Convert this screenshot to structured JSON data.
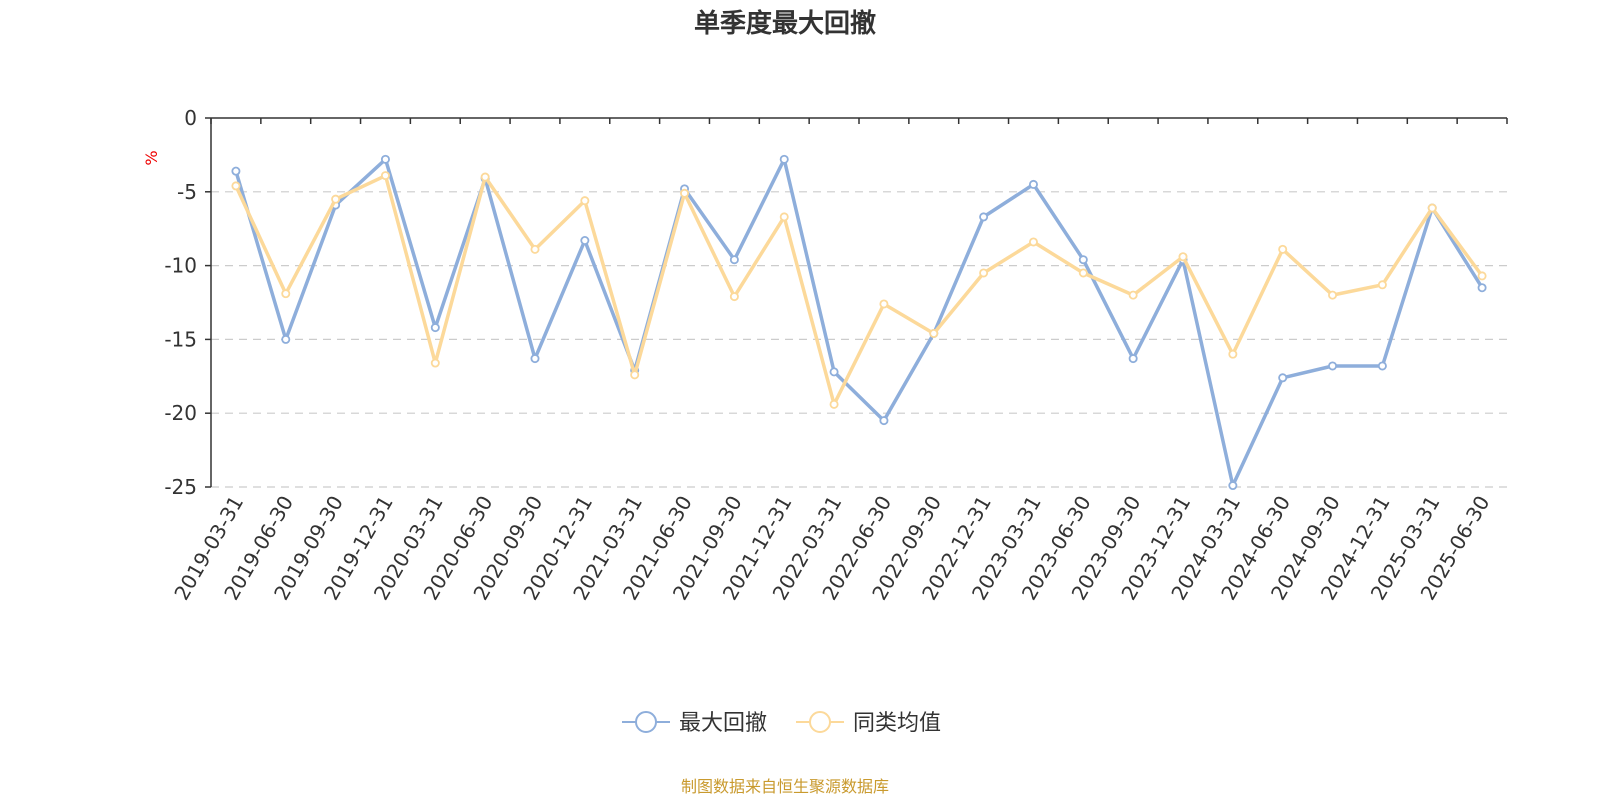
{
  "chart_data": {
    "type": "line",
    "title": "单季度最大回撤",
    "ylabel": "%",
    "xlabel": "",
    "ylim": [
      -25,
      0
    ],
    "yticks": [
      0,
      -5,
      -10,
      -15,
      -20,
      -25
    ],
    "grid": true,
    "legend_position": "bottom",
    "categories": [
      "2019-03-31",
      "2019-06-30",
      "2019-09-30",
      "2019-12-31",
      "2020-03-31",
      "2020-06-30",
      "2020-09-30",
      "2020-12-31",
      "2021-03-31",
      "2021-06-30",
      "2021-09-30",
      "2021-12-31",
      "2022-03-31",
      "2022-06-30",
      "2022-09-30",
      "2022-12-31",
      "2023-03-31",
      "2023-06-30",
      "2023-09-30",
      "2023-12-31",
      "2024-03-31",
      "2024-06-30",
      "2024-09-30",
      "2024-12-31",
      "2025-03-31",
      "2025-06-30"
    ],
    "series": [
      {
        "name": "最大回撤",
        "color": "#8eaedb",
        "values": [
          -3.6,
          -15.0,
          -5.9,
          -2.8,
          -14.2,
          -4.1,
          -16.3,
          -8.3,
          -17.1,
          -4.8,
          -9.6,
          -2.8,
          -17.2,
          -20.5,
          -14.6,
          -6.7,
          -4.5,
          -9.6,
          -16.3,
          -9.6,
          -24.9,
          -17.6,
          -16.8,
          -16.8,
          -6.1,
          -11.5
        ]
      },
      {
        "name": "同类均值",
        "color": "#fcd99a",
        "values": [
          -4.6,
          -11.9,
          -5.5,
          -3.9,
          -16.6,
          -4.0,
          -8.9,
          -5.6,
          -17.4,
          -5.1,
          -12.1,
          -6.7,
          -19.4,
          -12.6,
          -14.6,
          -10.5,
          -8.4,
          -10.5,
          -12.0,
          -9.4,
          -16.0,
          -8.9,
          -12.0,
          -11.3,
          -6.1,
          -10.7
        ]
      }
    ]
  },
  "footer": {
    "source": "制图数据来自恒生聚源数据库"
  }
}
